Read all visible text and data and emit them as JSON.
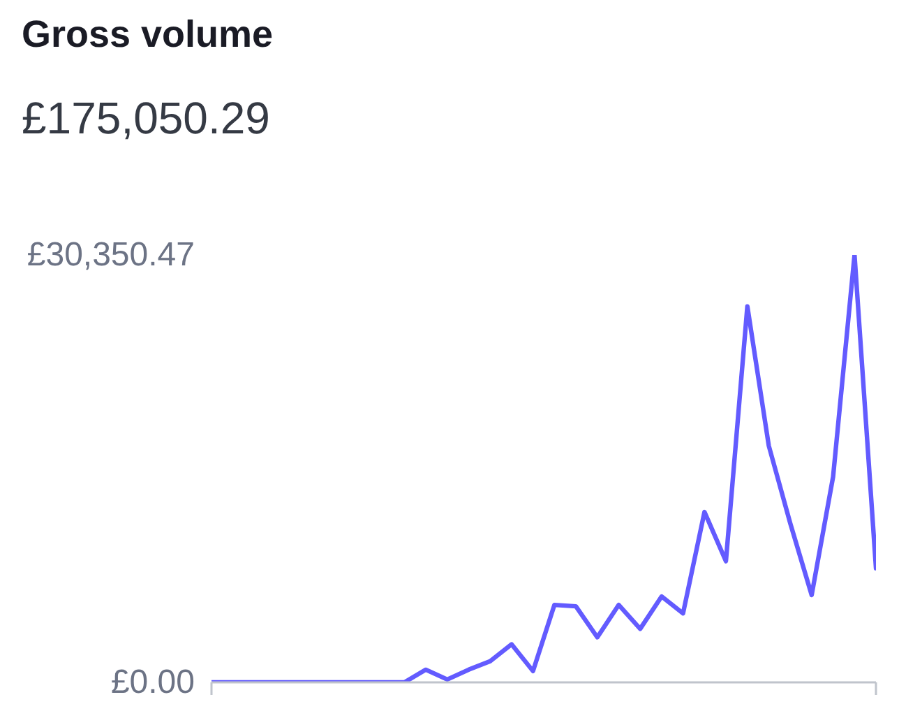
{
  "chart_data": {
    "type": "line",
    "title": "Gross volume",
    "subtitle": "£175,050.29",
    "categories": [
      null,
      null,
      null,
      null,
      null,
      null,
      null,
      null,
      null,
      null,
      null,
      null,
      null,
      null,
      null,
      null,
      null,
      null,
      null,
      null,
      null,
      null,
      null,
      null,
      null,
      null,
      null,
      null,
      null,
      null,
      null,
      null
    ],
    "values": [
      0,
      0,
      0,
      0,
      0,
      0,
      0,
      0,
      0,
      0,
      900,
      200,
      900,
      1500,
      2700,
      800,
      5500,
      5400,
      3200,
      5500,
      3800,
      6100,
      4900,
      12100,
      8600,
      26700,
      16800,
      11300,
      6200,
      14600,
      30350.47,
      8100
    ],
    "color": "#635bff",
    "ylim": [
      0,
      30350.47
    ],
    "yticks": [
      {
        "value": 0,
        "label": "£0.00"
      },
      {
        "value": 30350.47,
        "label": "£30,350.47"
      }
    ],
    "tick_labels": "y"
  }
}
